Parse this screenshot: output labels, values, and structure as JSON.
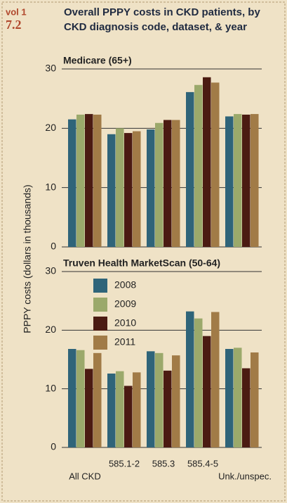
{
  "header": {
    "volume": "vol 1",
    "figure": "7.2",
    "title": [
      "Overall PPPY costs in CKD patients, by",
      "CKD diagnosis code, dataset, & year"
    ]
  },
  "ylabel": "PPPY costs (dollars in thousands)",
  "chart_data": [
    {
      "type": "bar",
      "title": "Medicare (65+)",
      "ylim": [
        0,
        30
      ],
      "yticks": [
        0,
        10,
        20,
        30
      ],
      "grid": true,
      "series": [
        {
          "name": "2008",
          "color": "#2f6479",
          "values": [
            21.5,
            19.0,
            19.8,
            26.1,
            22.0
          ]
        },
        {
          "name": "2009",
          "color": "#9ba96b",
          "values": [
            22.3,
            20.0,
            20.9,
            27.3,
            22.4
          ]
        },
        {
          "name": "2010",
          "color": "#4b1b12",
          "values": [
            22.4,
            19.2,
            21.4,
            28.6,
            22.3
          ]
        },
        {
          "name": "2011",
          "color": "#a17b47",
          "values": [
            22.3,
            19.5,
            21.4,
            27.7,
            22.4
          ]
        }
      ]
    },
    {
      "type": "bar",
      "title": "Truven Health MarketScan (50-64)",
      "categories": [
        "All CKD",
        "585.1-2",
        "585.3",
        "585.4-5",
        "Unk./unspec."
      ],
      "ylim": [
        0,
        30
      ],
      "yticks": [
        0,
        10,
        20,
        30
      ],
      "grid": true,
      "legend": "upper left",
      "series": [
        {
          "name": "2008",
          "color": "#2f6479",
          "values": [
            16.8,
            12.6,
            16.4,
            23.2,
            16.8
          ]
        },
        {
          "name": "2009",
          "color": "#9ba96b",
          "values": [
            16.6,
            13.0,
            16.1,
            22.0,
            17.0
          ]
        },
        {
          "name": "2010",
          "color": "#4b1b12",
          "values": [
            13.4,
            10.5,
            13.1,
            19.0,
            13.5
          ]
        },
        {
          "name": "2011",
          "color": "#a17b47",
          "values": [
            16.1,
            12.8,
            15.7,
            23.1,
            16.2
          ]
        }
      ]
    }
  ]
}
